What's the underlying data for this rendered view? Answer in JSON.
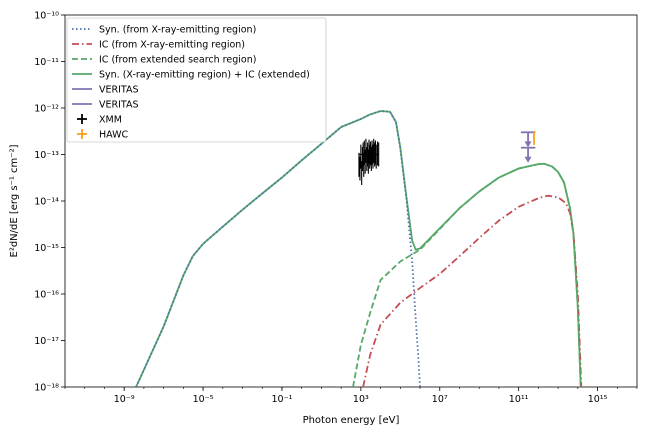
{
  "chart_data": {
    "type": "line",
    "xlabel": "Photon energy [eV]",
    "ylabel": "E²dN/dE [erg s⁻¹ cm⁻²]",
    "x_scale": "log",
    "y_scale": "log",
    "xlim": [
      1e-12,
      1e+17
    ],
    "ylim": [
      1e-18,
      1e-10
    ],
    "x_ticks": [
      {
        "value": 1e-09,
        "label": "10⁻⁹"
      },
      {
        "value": 1e-05,
        "label": "10⁻⁵"
      },
      {
        "value": 0.1,
        "label": "10⁻¹"
      },
      {
        "value": 1000.0,
        "label": "10³"
      },
      {
        "value": 10000000.0,
        "label": "10⁷"
      },
      {
        "value": 100000000000.0,
        "label": "10¹¹"
      },
      {
        "value": 1000000000000000.0,
        "label": "10¹⁵"
      }
    ],
    "y_ticks": [
      {
        "value": 1e-18,
        "label": "10⁻¹⁸"
      },
      {
        "value": 1e-17,
        "label": "10⁻¹⁷"
      },
      {
        "value": 1e-16,
        "label": "10⁻¹⁶"
      },
      {
        "value": 1e-15,
        "label": "10⁻¹⁵"
      },
      {
        "value": 1e-14,
        "label": "10⁻¹⁴"
      },
      {
        "value": 1e-13,
        "label": "10⁻¹³"
      },
      {
        "value": 1e-12,
        "label": "10⁻¹²"
      },
      {
        "value": 1e-11,
        "label": "10⁻¹¹"
      },
      {
        "value": 1e-10,
        "label": "10⁻¹⁰"
      }
    ],
    "legend_position": "top-left",
    "grid": false,
    "series": [
      {
        "name": "Syn. (from X-ray-emitting region)",
        "color": "#4c72b0",
        "style": "dotted",
        "points": [
          [
            4e-09,
            1e-18
          ],
          [
            1e-07,
            2e-17
          ],
          [
            1e-06,
            2.5e-16
          ],
          [
            3e-06,
            6.5e-16
          ],
          [
            1e-05,
            1.2e-15
          ],
          [
            0.0001,
            2.8e-15
          ],
          [
            0.001,
            6.5e-15
          ],
          [
            0.01,
            1.45e-14
          ],
          [
            0.1,
            3.2e-14
          ],
          [
            1,
            7.5e-14
          ],
          [
            10,
            1.7e-13
          ],
          [
            100,
            3.9e-13
          ],
          [
            1000,
            5.8e-13
          ],
          [
            3000,
            7.3e-13
          ],
          [
            10000,
            8.6e-13
          ],
          [
            30000,
            8.3e-13
          ],
          [
            60000,
            5e-13
          ],
          [
            100000,
            1.4e-13
          ],
          [
            200000,
            1.2e-14
          ],
          [
            400000,
            5e-16
          ],
          [
            600000,
            3e-17
          ],
          [
            800000,
            5e-18
          ],
          [
            1000000.0,
            1e-18
          ]
        ]
      },
      {
        "name": "IC (from X-ray-emitting region)",
        "color": "#c44e52",
        "style": "dashdot",
        "points": [
          [
            1300.0,
            1e-18
          ],
          [
            3000.0,
            5e-18
          ],
          [
            10000.0,
            2.2e-17
          ],
          [
            100000.0,
            6.5e-17
          ],
          [
            1000000.0,
            1.35e-16
          ],
          [
            10000000.0,
            2.7e-16
          ],
          [
            100000000.0,
            6.5e-16
          ],
          [
            1000000000.0,
            1.6e-15
          ],
          [
            10000000000.0,
            3.8e-15
          ],
          [
            100000000000.0,
            7.5e-15
          ],
          [
            1000000000000.0,
            1.15e-14
          ],
          [
            3000000000000.0,
            1.3e-14
          ],
          [
            10000000000000.0,
            1.2e-14
          ],
          [
            25000000000000.0,
            9e-15
          ],
          [
            40000000000000.0,
            5.5e-15
          ],
          [
            60000000000000.0,
            2e-15
          ],
          [
            100000000000000.0,
            1e-16
          ],
          [
            150000000000000.0,
            1e-18
          ]
        ]
      },
      {
        "name": "IC (from extended search region)",
        "color": "#55a868",
        "style": "dashed",
        "points": [
          [
            400.0,
            1e-18
          ],
          [
            1000.0,
            8e-18
          ],
          [
            3000.0,
            4e-17
          ],
          [
            10000.0,
            2e-16
          ],
          [
            100000.0,
            5e-16
          ],
          [
            1000000.0,
            9e-16
          ],
          [
            10000000.0,
            2.5e-15
          ],
          [
            100000000.0,
            7e-15
          ],
          [
            1000000000.0,
            1.6e-14
          ],
          [
            10000000000.0,
            3.2e-14
          ],
          [
            100000000000.0,
            5e-14
          ],
          [
            1000000000000.0,
            6.2e-14
          ],
          [
            2000000000000.0,
            6.3e-14
          ],
          [
            5000000000000.0,
            5.5e-14
          ],
          [
            10000000000000.0,
            4.2e-14
          ],
          [
            20000000000000.0,
            2.5e-14
          ],
          [
            40000000000000.0,
            7e-15
          ],
          [
            60000000000000.0,
            2e-15
          ],
          [
            100000000000000.0,
            5e-17
          ],
          [
            140000000000000.0,
            1e-18
          ]
        ]
      },
      {
        "name": "Syn. (X-ray-emitting region) + IC (extended)",
        "color": "#55a868",
        "style": "solid",
        "points": [
          [
            4e-09,
            1e-18
          ],
          [
            1e-07,
            2e-17
          ],
          [
            1e-06,
            2.5e-16
          ],
          [
            3e-06,
            6.5e-16
          ],
          [
            1e-05,
            1.2e-15
          ],
          [
            0.0001,
            2.8e-15
          ],
          [
            0.001,
            6.5e-15
          ],
          [
            0.01,
            1.45e-14
          ],
          [
            0.1,
            3.2e-14
          ],
          [
            1,
            7.5e-14
          ],
          [
            10,
            1.7e-13
          ],
          [
            100,
            3.9e-13
          ],
          [
            1000,
            5.8e-13
          ],
          [
            3000,
            7.3e-13
          ],
          [
            10000,
            8.6e-13
          ],
          [
            30000,
            8.3e-13
          ],
          [
            60000,
            5e-13
          ],
          [
            100000,
            1.4e-13
          ],
          [
            200000,
            1.3e-14
          ],
          [
            400000,
            1.4e-15
          ],
          [
            600000,
            9e-16
          ],
          [
            1000000.0,
            9.5e-16
          ],
          [
            10000000.0,
            2.6e-15
          ],
          [
            100000000.0,
            7e-15
          ],
          [
            1000000000.0,
            1.6e-14
          ],
          [
            10000000000.0,
            3.2e-14
          ],
          [
            100000000000.0,
            5e-14
          ],
          [
            1000000000000.0,
            6.2e-14
          ],
          [
            2000000000000.0,
            6.3e-14
          ],
          [
            5000000000000.0,
            5.5e-14
          ],
          [
            10000000000000.0,
            4.2e-14
          ],
          [
            20000000000000.0,
            2.5e-14
          ],
          [
            40000000000000.0,
            7e-15
          ],
          [
            60000000000000.0,
            2e-15
          ],
          [
            100000000000000.0,
            5e-17
          ],
          [
            140000000000000.0,
            1e-18
          ]
        ]
      }
    ],
    "upper_limits": [
      {
        "name": "VERITAS",
        "color": "#8172b2",
        "x": 300000000000.0,
        "xerr": [
          130000000000.0,
          700000000000.0
        ],
        "y": 3e-13
      },
      {
        "name": "VERITAS",
        "color": "#8172b2",
        "x": 300000000000.0,
        "xerr": [
          130000000000.0,
          700000000000.0
        ],
        "y": 1.4e-13
      }
    ],
    "hawc_points": [
      {
        "name": "HAWC",
        "color": "#ff9f1c",
        "x": 600000000000.0,
        "ylow": 1.6e-13,
        "yhigh": 3.2e-13
      }
    ],
    "xmm_data": {
      "name": "XMM",
      "color": "#000000",
      "points": [
        [
          800,
          6e-14
        ],
        [
          900,
          5e-14
        ],
        [
          1000,
          9e-14
        ],
        [
          1100,
          4e-14
        ],
        [
          1200,
          8e-14
        ],
        [
          1300,
          1e-13
        ],
        [
          1400,
          6e-14
        ],
        [
          1500,
          1.1e-13
        ],
        [
          1650,
          7e-14
        ],
        [
          1800,
          1.2e-13
        ],
        [
          2000,
          8e-14
        ],
        [
          2200,
          1e-13
        ],
        [
          2400,
          7e-14
        ],
        [
          2600,
          1.15e-13
        ],
        [
          2800,
          9e-14
        ],
        [
          3100,
          1.05e-13
        ],
        [
          3400,
          8e-14
        ],
        [
          3700,
          1.1e-13
        ],
        [
          4100,
          9e-14
        ],
        [
          4500,
          1.2e-13
        ],
        [
          5000,
          1e-13
        ],
        [
          5500,
          1.1e-13
        ],
        [
          6000,
          9e-14
        ],
        [
          7000,
          1.05e-13
        ],
        [
          8000,
          1e-13
        ]
      ]
    },
    "legend": [
      {
        "label": "Syn. (from X-ray-emitting region)",
        "color": "#4c72b0",
        "style": "dotted"
      },
      {
        "label": "IC (from X-ray-emitting region)",
        "color": "#c44e52",
        "style": "dashdot"
      },
      {
        "label": "IC (from extended search region)",
        "color": "#55a868",
        "style": "dashed"
      },
      {
        "label": "Syn. (X-ray-emitting region) + IC (extended)",
        "color": "#55a868",
        "style": "solid"
      },
      {
        "label": "VERITAS",
        "color": "#8172b2",
        "style": "solid"
      },
      {
        "label": "VERITAS",
        "color": "#8172b2",
        "style": "solid"
      },
      {
        "label": "XMM",
        "color": "#000000",
        "style": "marker-plus"
      },
      {
        "label": "HAWC",
        "color": "#ff9f1c",
        "style": "marker-plus"
      }
    ]
  }
}
